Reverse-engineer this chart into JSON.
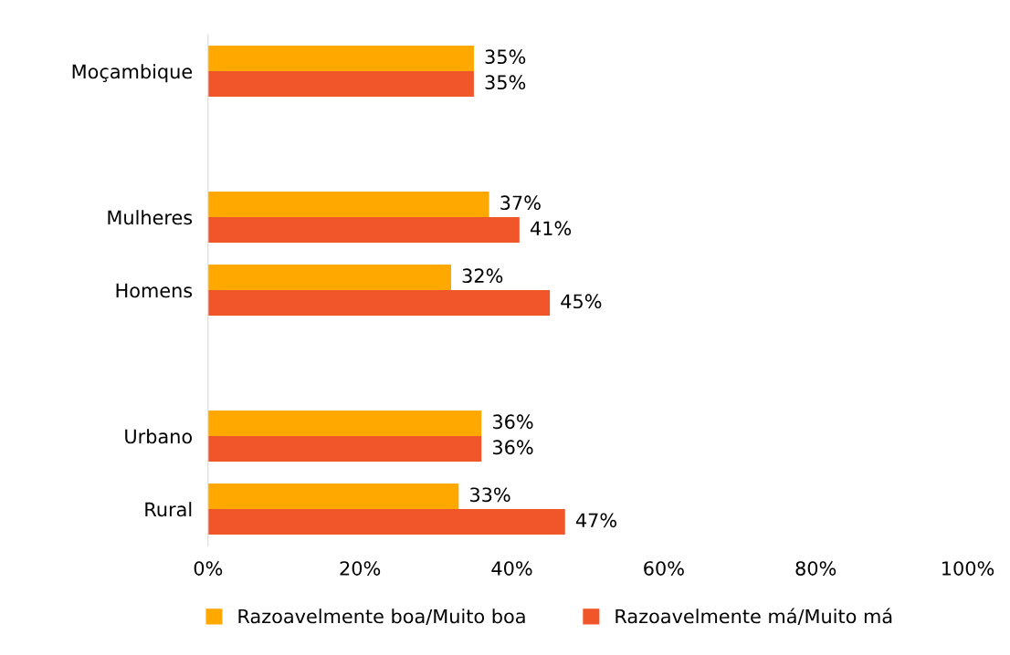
{
  "chart_data": {
    "type": "bar",
    "orientation": "horizontal",
    "categories": [
      "Moçambique",
      null,
      "Mulheres",
      "Homens",
      null,
      "Urbano",
      "Rural"
    ],
    "series": [
      {
        "name": "Razoavelmente boa/Muito boa",
        "color": "#ffa800",
        "values": [
          35,
          null,
          37,
          32,
          null,
          36,
          33
        ],
        "value_labels": [
          "35%",
          null,
          "37%",
          "32%",
          null,
          "36%",
          "33%"
        ]
      },
      {
        "name": "Razoavelmente má/Muito má",
        "color": "#f1562a",
        "values": [
          35,
          null,
          41,
          45,
          null,
          36,
          47
        ],
        "value_labels": [
          "35%",
          null,
          "41%",
          "45%",
          null,
          "36%",
          "47%"
        ]
      }
    ],
    "xlim": [
      0,
      100
    ],
    "xticks": [
      {
        "value": 0,
        "label": "0%"
      },
      {
        "value": 20,
        "label": "20%"
      },
      {
        "value": 40,
        "label": "40%"
      },
      {
        "value": 60,
        "label": "60%"
      },
      {
        "value": 80,
        "label": "80%"
      },
      {
        "value": 100,
        "label": "100%"
      }
    ],
    "grid": false,
    "legend": "bottom"
  }
}
